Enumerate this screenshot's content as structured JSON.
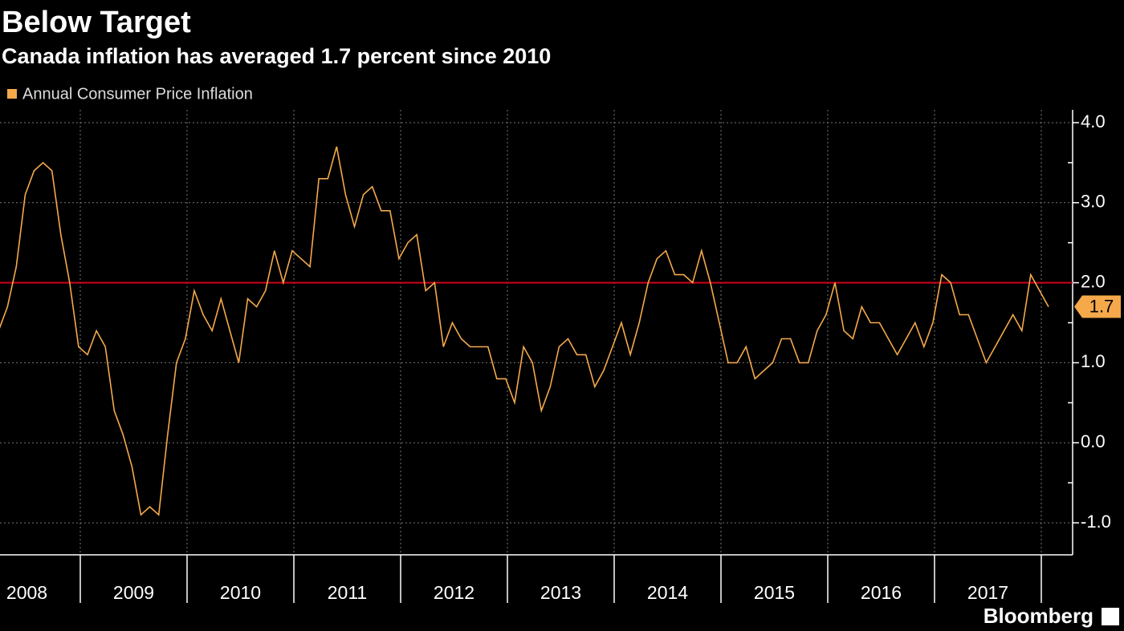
{
  "chart_data": {
    "type": "line",
    "title": "Below Target",
    "subtitle": "Canada inflation has averaged 1.7 percent since 2010",
    "source": "Bloomberg",
    "categories": [
      null,
      null,
      null,
      null,
      "2008",
      null,
      null,
      null,
      null,
      null,
      null,
      null,
      null,
      null,
      null,
      null,
      "2009",
      null,
      null,
      null,
      null,
      null,
      null,
      null,
      null,
      null,
      null,
      null,
      "2010",
      null,
      null,
      null,
      null,
      null,
      null,
      null,
      null,
      null,
      null,
      null,
      "2011",
      null,
      null,
      null,
      null,
      null,
      null,
      null,
      null,
      null,
      null,
      null,
      "2012",
      null,
      null,
      null,
      null,
      null,
      null,
      null,
      null,
      null,
      null,
      null,
      "2013",
      null,
      null,
      null,
      null,
      null,
      null,
      null,
      null,
      null,
      null,
      null,
      "2014",
      null,
      null,
      null,
      null,
      null,
      null,
      null,
      null,
      null,
      null,
      null,
      "2015",
      null,
      null,
      null,
      null,
      null,
      null,
      null,
      null,
      null,
      null,
      null,
      "2016",
      null,
      null,
      null,
      null,
      null,
      null,
      null,
      null,
      null,
      null,
      null,
      "2017",
      null,
      null,
      null,
      null,
      null,
      null
    ],
    "series": [
      {
        "name": "Annual Consumer Price Inflation",
        "color": "#f5a94b",
        "values": [
          1.4,
          1.7,
          2.2,
          3.1,
          3.4,
          3.5,
          3.4,
          2.6,
          2.0,
          1.2,
          1.1,
          1.4,
          1.2,
          0.4,
          0.1,
          -0.3,
          -0.9,
          -0.8,
          -0.9,
          0.1,
          1.0,
          1.3,
          1.9,
          1.6,
          1.4,
          1.8,
          1.4,
          1.0,
          1.8,
          1.7,
          1.9,
          2.4,
          2.0,
          2.4,
          2.3,
          2.2,
          3.3,
          3.3,
          3.7,
          3.1,
          2.7,
          3.1,
          3.2,
          2.9,
          2.9,
          2.3,
          2.5,
          2.6,
          1.9,
          2.0,
          1.2,
          1.5,
          1.3,
          1.2,
          1.2,
          1.2,
          0.8,
          0.8,
          0.5,
          1.2,
          1.0,
          0.4,
          0.7,
          1.2,
          1.3,
          1.1,
          1.1,
          0.7,
          0.9,
          1.2,
          1.5,
          1.1,
          1.5,
          2.0,
          2.3,
          2.4,
          2.1,
          2.1,
          2.0,
          2.4,
          2.0,
          1.5,
          1.0,
          1.0,
          1.2,
          0.8,
          0.9,
          1.0,
          1.3,
          1.3,
          1.0,
          1.0,
          1.4,
          1.6,
          2.0,
          1.4,
          1.3,
          1.7,
          1.5,
          1.5,
          1.3,
          1.1,
          1.3,
          1.5,
          1.2,
          1.5,
          2.1,
          2.0,
          1.6,
          1.6,
          1.3,
          1.0,
          1.2,
          1.4,
          1.6,
          1.4,
          2.1,
          1.9,
          1.7
        ]
      }
    ],
    "ylim": [
      -1.4,
      4.16
    ],
    "yticks": [
      {
        "value": -1,
        "label": "-1.0"
      },
      {
        "value": 0,
        "label": "0.0"
      },
      {
        "value": 1,
        "label": "1.0"
      },
      {
        "value": 2,
        "label": "2.0"
      },
      {
        "value": 3,
        "label": "3.0"
      },
      {
        "value": 4,
        "label": "4.0"
      }
    ],
    "minor_yticks": [
      -0.5,
      0.5,
      1.5,
      2.5,
      3.5
    ],
    "reference_line": {
      "value": 2,
      "color": "#d0021b"
    },
    "grid": true
  }
}
